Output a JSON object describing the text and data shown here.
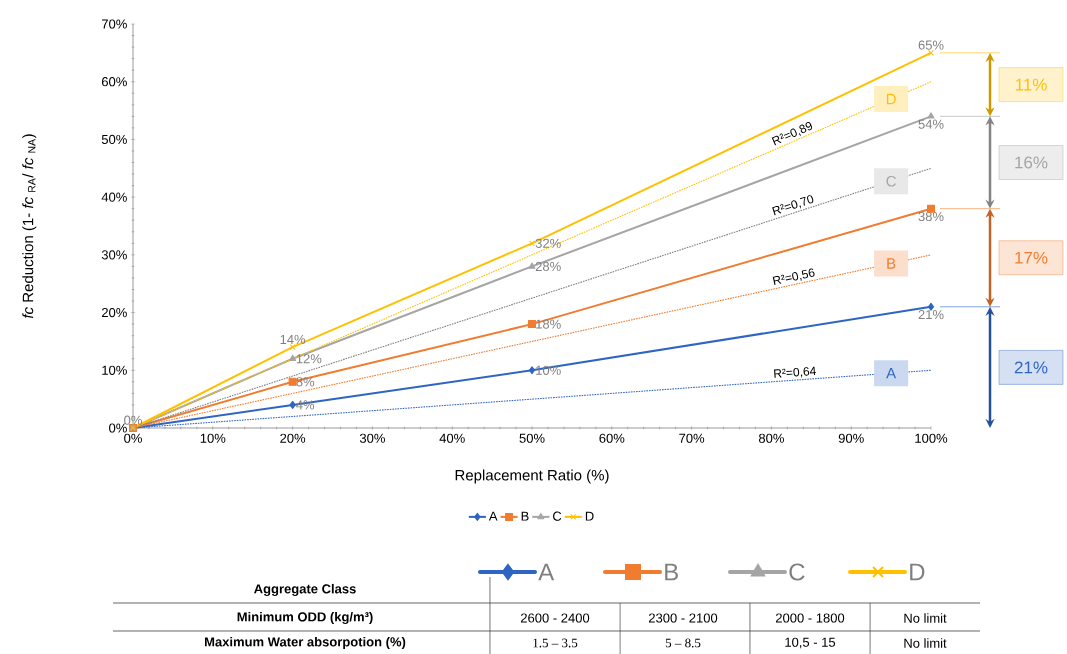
{
  "chart_data": {
    "type": "line",
    "ylabel": "*fc* Reduction (1- *fc* $_{RA}$/ *fc* $_{NA}$)",
    "xlabel": "Replacement Ratio (%)",
    "x": [
      0,
      20,
      50,
      100
    ],
    "xlim": [
      0,
      100
    ],
    "ylim": [
      0,
      70
    ],
    "xticks": [
      {
        "value": 0,
        "label": "0%"
      },
      {
        "value": 10,
        "label": "10%"
      },
      {
        "value": 20,
        "label": "20%"
      },
      {
        "value": 30,
        "label": "30%"
      },
      {
        "value": 40,
        "label": "40%"
      },
      {
        "value": 50,
        "label": "50%"
      },
      {
        "value": 60,
        "label": "60%"
      },
      {
        "value": 70,
        "label": "70%"
      },
      {
        "value": 80,
        "label": "80%"
      },
      {
        "value": 90,
        "label": "90%"
      },
      {
        "value": 100,
        "label": "100%"
      }
    ],
    "yticks": [
      {
        "value": 0,
        "label": "0%"
      },
      {
        "value": 10,
        "label": "10%"
      },
      {
        "value": 20,
        "label": "20%"
      },
      {
        "value": 30,
        "label": "30%"
      },
      {
        "value": 40,
        "label": "40%"
      },
      {
        "value": 50,
        "label": "50%"
      },
      {
        "value": 60,
        "label": "60%"
      },
      {
        "value": 70,
        "label": "70%"
      }
    ],
    "series": [
      {
        "name": "A",
        "color": "#2e65c2",
        "marker": "diamond",
        "values": [
          0,
          4,
          10,
          21
        ],
        "value_labels": [
          null,
          "4%",
          "10%",
          "21%"
        ]
      },
      {
        "name": "B",
        "color": "#f07c2f",
        "marker": "square",
        "values": [
          0,
          8,
          18,
          38
        ],
        "value_labels": [
          null,
          "8%",
          "18%",
          "38%"
        ]
      },
      {
        "name": "C",
        "color": "#a5a5a5",
        "marker": "triangle",
        "values": [
          0,
          12,
          28,
          54
        ],
        "value_labels": [
          null,
          "12%",
          "28%",
          "54%"
        ]
      },
      {
        "name": "D",
        "color": "#ffc000",
        "marker": "cross",
        "values": [
          0,
          14,
          32,
          65
        ],
        "value_labels": [
          "0%",
          "14%",
          "32%",
          "65%"
        ]
      },
      {
        "color": "#2e65c2",
        "marker": "none",
        "line_style": "dotted",
        "values": [
          0,
          2,
          5,
          10
        ]
      },
      {
        "color": "#f07c2f",
        "marker": "none",
        "line_style": "dotted",
        "values": [
          0,
          6,
          15,
          30
        ]
      },
      {
        "color": "#7f7f7f",
        "marker": "none",
        "line_style": "dotted",
        "values": [
          0,
          9,
          22.5,
          45
        ]
      },
      {
        "color": "#ffc000",
        "marker": "none",
        "line_style": "dotted",
        "values": [
          0,
          12,
          30,
          60
        ]
      }
    ],
    "annotations": [
      "R²=0,64",
      "R²=0,56",
      "R²=0,70",
      "R²=0,89",
      "A",
      "B",
      "C",
      "D",
      "21%",
      "17%",
      "16%",
      "11%",
      "Aggregate Class",
      "Minimum ODD (kg/m³)",
      "2600 - 2400",
      "2300 - 2100",
      "2000 - 1800",
      "No limit",
      "Maximum Water absorpotion (%)",
      "1.5 – 3.5",
      "5 – 8.5",
      "10,5 - 15",
      "No limit"
    ],
    "legend": "bottom"
  }
}
